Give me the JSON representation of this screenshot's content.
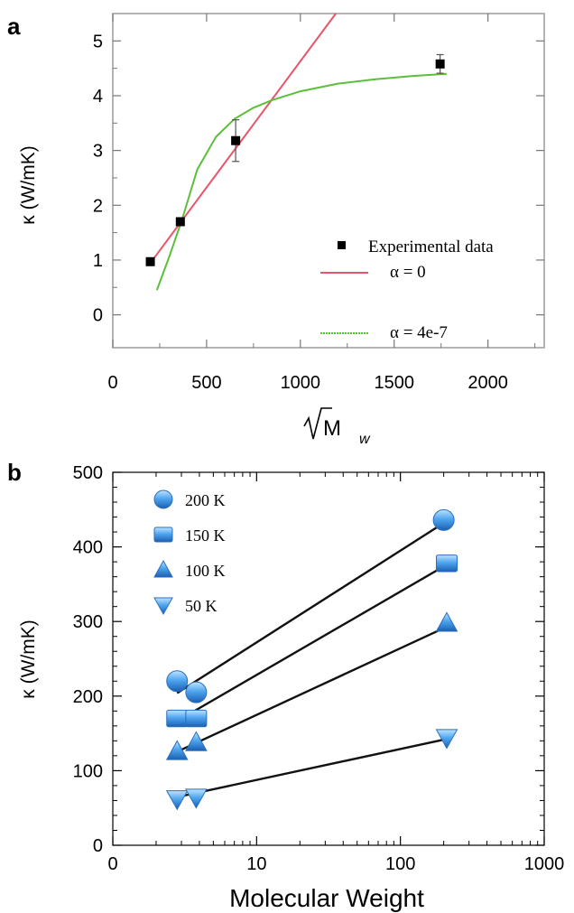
{
  "chart_data": [
    {
      "panel_label": "a",
      "type": "scatter",
      "ylabel": "κ (W/mK)",
      "xlabel_main": "√M",
      "xlabel_sub": "w",
      "xlim": [
        0,
        2300
      ],
      "ylim": [
        -0.6,
        5.5
      ],
      "xticks": [
        0,
        500,
        1000,
        1500,
        2000
      ],
      "yticks": [
        0,
        1,
        2,
        3,
        4,
        5
      ],
      "legend_position": "bottom-right",
      "series": [
        {
          "name": "Experimental data",
          "kind": "points",
          "color": "#000000",
          "points": [
            {
              "x": 200,
              "y": 0.97,
              "err": 0.05
            },
            {
              "x": 360,
              "y": 1.7,
              "err": 0.05
            },
            {
              "x": 655,
              "y": 3.18,
              "err": 0.38
            },
            {
              "x": 1745,
              "y": 4.58,
              "err": 0.17
            }
          ]
        },
        {
          "name": "α = 0",
          "kind": "line",
          "color": "#e8556a",
          "x": [
            195,
            1200
          ],
          "y": [
            0.92,
            5.55
          ]
        },
        {
          "name": "α = 4e-7",
          "kind": "line",
          "color": "#5cbf3a",
          "x": [
            235,
            300,
            370,
            450,
            550,
            650,
            750,
            850,
            1000,
            1200,
            1400,
            1600,
            1780
          ],
          "y": [
            0.45,
            1.05,
            1.75,
            2.65,
            3.25,
            3.58,
            3.78,
            3.92,
            4.08,
            4.22,
            4.3,
            4.36,
            4.4
          ]
        }
      ]
    },
    {
      "panel_label": "b",
      "type": "scatter",
      "ylabel": "κ (W/mK)",
      "xlabel": "Molecular Weight",
      "xscale": "log",
      "xlim": [
        1,
        1000
      ],
      "ylim": [
        0,
        500
      ],
      "xticks": [
        1,
        10,
        100,
        1000
      ],
      "xtick_labels": [
        "0",
        "10",
        "100",
        "1000"
      ],
      "yticks": [
        0,
        100,
        200,
        300,
        400,
        500
      ],
      "legend_position": "top-left",
      "series": [
        {
          "name": "200 K",
          "marker": "circle",
          "x": [
            2.8,
            3.8,
            200
          ],
          "y": [
            220,
            205,
            436
          ],
          "fit": [
            [
              2.8,
              200
            ],
            [
              204,
              432
            ]
          ]
        },
        {
          "name": "150 K",
          "marker": "square",
          "x": [
            2.8,
            3.8,
            210
          ],
          "y": [
            170,
            170,
            378
          ],
          "fit": [
            [
              3.4,
              205
            ],
            [
              176,
              375
            ]
          ]
        },
        {
          "name": "100 K",
          "marker": "triangle-up",
          "x": [
            2.8,
            3.8,
            210
          ],
          "y": [
            126,
            138,
            298
          ],
          "fit": [
            [
              2.7,
              205
            ],
            [
              124,
              292
            ]
          ]
        },
        {
          "name": "50 K",
          "marker": "triangle-down",
          "x": [
            2.8,
            3.8,
            210
          ],
          "y": [
            62,
            64,
            144
          ],
          "fit": [
            [
              2.7,
              205
            ],
            [
              64,
              142
            ]
          ]
        }
      ]
    }
  ]
}
